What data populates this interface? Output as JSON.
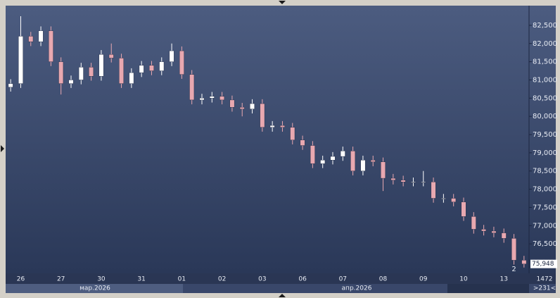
{
  "chart_data": {
    "type": "candlestick",
    "categories": [
      null,
      "26",
      null,
      null,
      null,
      "27",
      null,
      null,
      null,
      "30",
      null,
      null,
      null,
      "31",
      null,
      null,
      null,
      "01",
      null,
      null,
      null,
      "02",
      null,
      null,
      null,
      "03",
      null,
      null,
      null,
      "06",
      null,
      null,
      null,
      "07",
      null,
      null,
      null,
      "08",
      null,
      null,
      null,
      "09",
      null,
      null,
      null,
      "10",
      null,
      null,
      null,
      "13",
      null,
      null
    ],
    "open": [
      80800,
      80900,
      82200,
      82050,
      82350,
      81500,
      80900,
      81000,
      81350,
      81100,
      81700,
      81600,
      80900,
      81200,
      81400,
      81250,
      81500,
      81800,
      81150,
      80450,
      80500,
      80550,
      80450,
      80250,
      80200,
      80350,
      79700,
      79750,
      79700,
      79350,
      79200,
      78700,
      78800,
      78900,
      79050,
      78500,
      78800,
      78750,
      78300,
      78250,
      78200,
      78200,
      78200,
      77750,
      77750,
      77650,
      77250,
      76900,
      76850,
      76800,
      76650,
      76050
    ],
    "high": [
      81020,
      82750,
      82320,
      82470,
      82470,
      81620,
      81120,
      81470,
      81470,
      81820,
      82000,
      81720,
      81320,
      81520,
      81520,
      81620,
      82000,
      81920,
      81270,
      80620,
      80670,
      80670,
      80570,
      80370,
      80470,
      80470,
      79870,
      79870,
      79820,
      79470,
      79320,
      78920,
      79020,
      79170,
      79170,
      78920,
      78920,
      78870,
      78420,
      78370,
      78320,
      78500,
      78320,
      77870,
      77870,
      77770,
      77370,
      77020,
      76970,
      76920,
      76770,
      76170
    ],
    "low": [
      80680,
      80780,
      81930,
      81930,
      81380,
      80600,
      80780,
      80880,
      80980,
      80980,
      81480,
      80780,
      80780,
      81080,
      81130,
      81130,
      81380,
      81030,
      80330,
      80330,
      80380,
      80330,
      80130,
      80000,
      80080,
      79580,
      79580,
      79580,
      79230,
      79080,
      78580,
      78580,
      78680,
      78780,
      78380,
      78380,
      78630,
      77950,
      78130,
      78080,
      78080,
      78080,
      77630,
      77630,
      77530,
      77130,
      76780,
      76730,
      76680,
      76530,
      75930,
      75850
    ],
    "close": [
      80900,
      82200,
      82050,
      82350,
      81500,
      80900,
      81000,
      81350,
      81100,
      81700,
      81600,
      80900,
      81200,
      81400,
      81250,
      81500,
      81800,
      81150,
      80450,
      80500,
      80550,
      80450,
      80250,
      80200,
      80350,
      79700,
      79750,
      79700,
      79350,
      79200,
      78700,
      78800,
      78900,
      79050,
      78500,
      78800,
      78750,
      78300,
      78250,
      78200,
      78200,
      78200,
      77750,
      77750,
      77650,
      77250,
      76900,
      76850,
      76800,
      76650,
      76050,
      75948
    ],
    "up_color": "#ffffff",
    "down_color": "#e8a8b0",
    "ylim": [
      75690,
      83040
    ],
    "yticks": [
      {
        "value": 76500,
        "label": "76,500"
      },
      {
        "value": 77000,
        "label": "77,000"
      },
      {
        "value": 77500,
        "label": "77,500"
      },
      {
        "value": 78000,
        "label": "78,000"
      },
      {
        "value": 78500,
        "label": "78,500"
      },
      {
        "value": 79000,
        "label": "79,000"
      },
      {
        "value": 79500,
        "label": "79,500"
      },
      {
        "value": 80000,
        "label": "80,000"
      },
      {
        "value": 80500,
        "label": "80,500"
      },
      {
        "value": 81000,
        "label": "81,000"
      },
      {
        "value": 81500,
        "label": "81,500"
      },
      {
        "value": 82000,
        "label": "82,000"
      },
      {
        "value": 82500,
        "label": "82,500"
      }
    ],
    "last_price": {
      "value": 75948,
      "label": "75,948"
    },
    "months": [
      "мар.2026",
      "апр.2026"
    ],
    "marker": "2",
    "footer": {
      "count": "1472",
      "range": ">231<"
    }
  }
}
